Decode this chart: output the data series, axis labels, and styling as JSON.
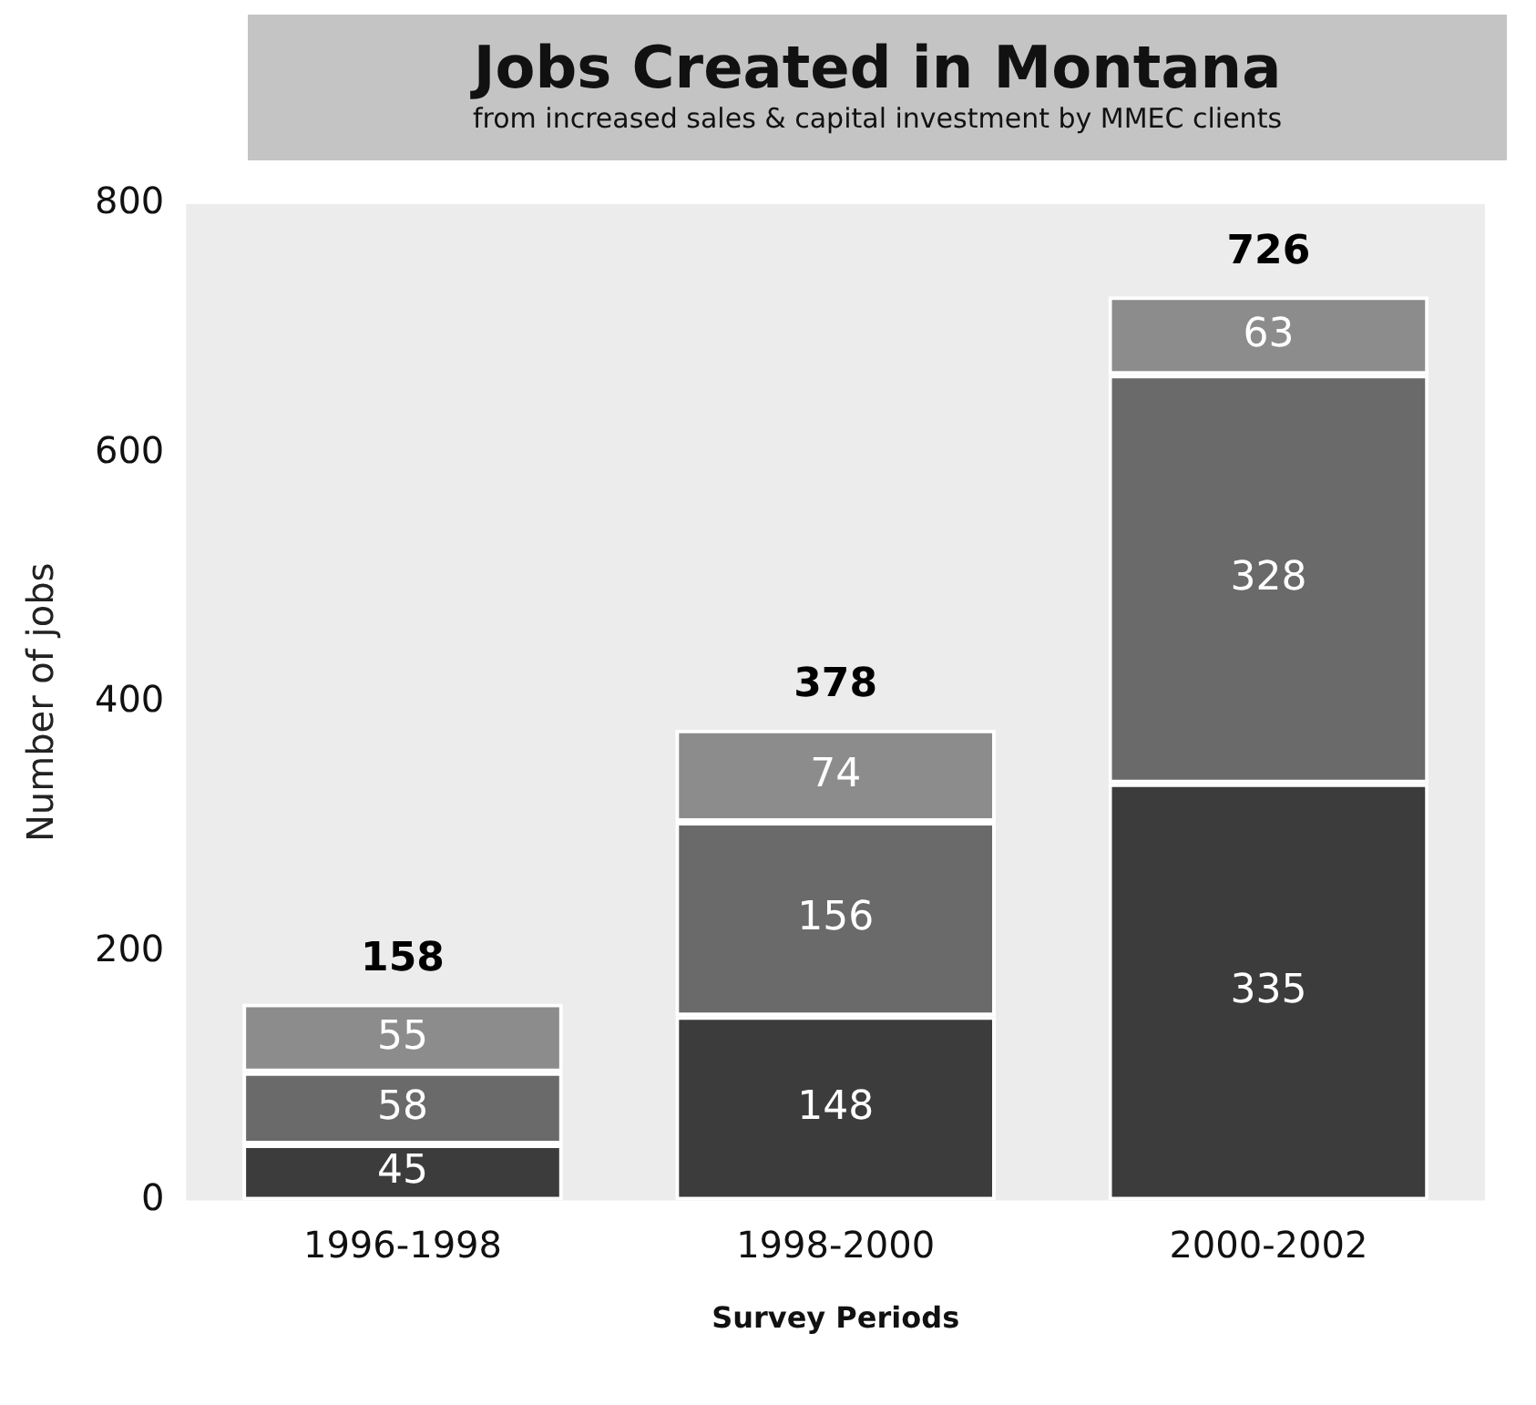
{
  "chart_data": {
    "type": "bar",
    "title": "Jobs Created in Montana",
    "subtitle": "from increased sales & capital investment by MMEC clients",
    "xlabel": "Survey Periods",
    "ylabel": "Number of jobs",
    "categories": [
      "1996-1998",
      "1998-2000",
      "2000-2002"
    ],
    "stacked": true,
    "data_labels": true,
    "totals": [
      "158",
      "378",
      "726"
    ],
    "ylim": [
      0,
      800
    ],
    "yticks": [
      0,
      200,
      400,
      600,
      800
    ],
    "grid": false,
    "legend": false,
    "series": [
      {
        "color": "#3c3c3c",
        "values": [
          45,
          148,
          335
        ]
      },
      {
        "color": "#6a6a6a",
        "values": [
          58,
          156,
          328
        ]
      },
      {
        "color": "#8c8c8c",
        "values": [
          55,
          74,
          63
        ]
      }
    ]
  }
}
